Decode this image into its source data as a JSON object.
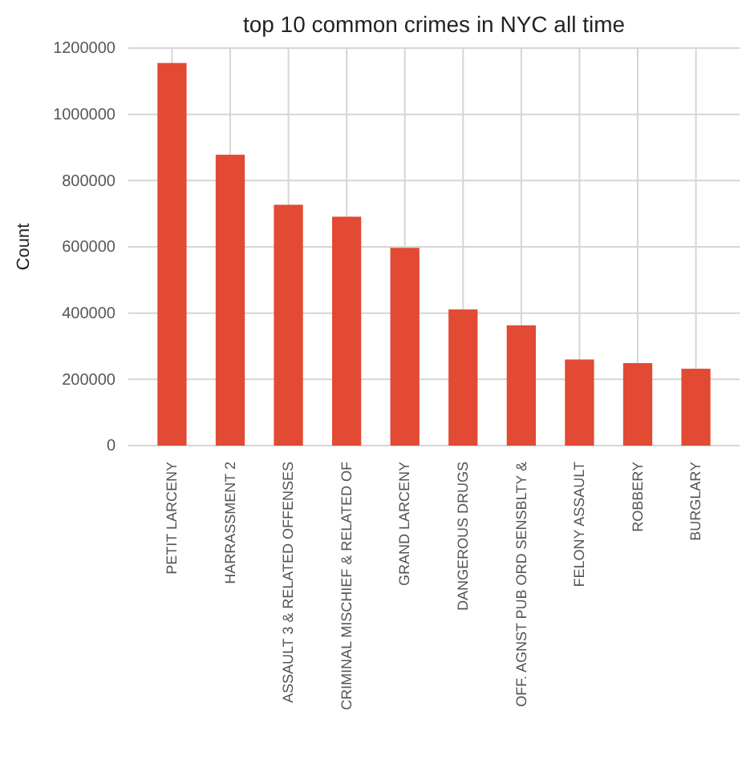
{
  "chart_data": {
    "type": "bar",
    "title": "top 10 common crimes in NYC all time",
    "ylabel": "Count",
    "categories": [
      "PETIT LARCENY",
      "HARRASSMENT 2",
      "ASSAULT 3 & RELATED OFFENSES",
      "CRIMINAL MISCHIEF & RELATED OF",
      "GRAND LARCENY",
      "DANGEROUS DRUGS",
      "OFF. AGNST PUB ORD SENSBLTY &",
      "FELONY ASSAULT",
      "ROBBERY",
      "BURGLARY"
    ],
    "values": [
      1155000,
      878000,
      727000,
      691000,
      597000,
      411000,
      363000,
      260000,
      249000,
      232000
    ],
    "color": "#e24a33",
    "ylim": [
      0,
      1200000
    ],
    "yticks": [
      0,
      200000,
      400000,
      600000,
      800000,
      1000000,
      1200000
    ],
    "grid": true
  }
}
